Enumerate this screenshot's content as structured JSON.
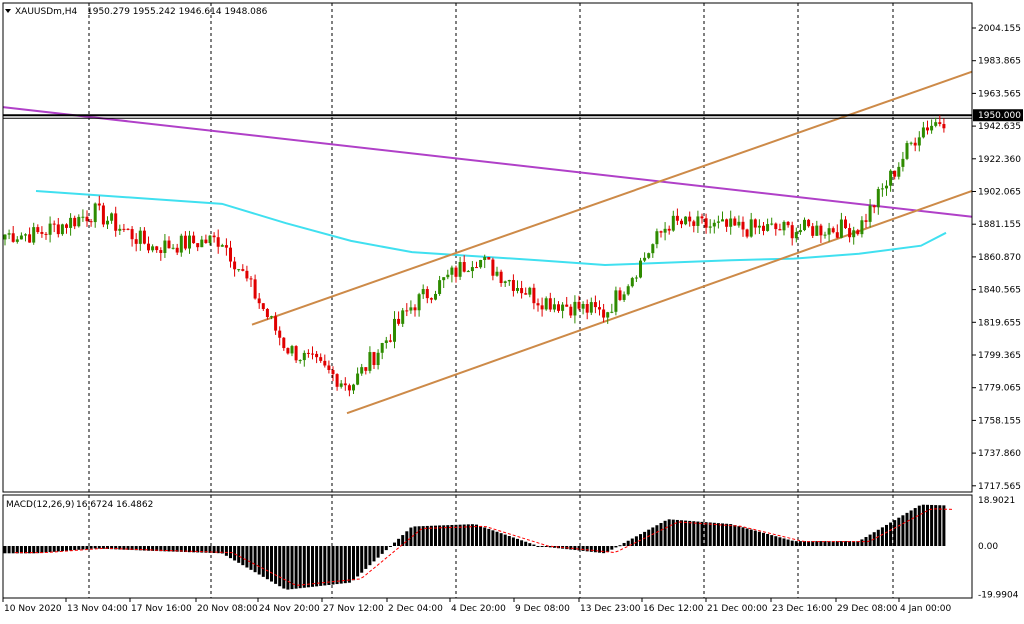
{
  "symbol_header": {
    "symbol": "XAUUSDm,H4",
    "ohlc": "1950.279 1955.242 1946.614 1948.086"
  },
  "macd_header": {
    "name": "MACD(12,26,9)",
    "values": "16.6724 16.4862"
  },
  "price_axis_labels": [
    "2004.155",
    "1983.865",
    "1963.565",
    "1942.635",
    "1922.360",
    "1902.065",
    "1881.155",
    "1860.870",
    "1840.565",
    "1819.655",
    "1799.365",
    "1779.065",
    "1758.155",
    "1737.860",
    "1717.565"
  ],
  "macd_axis_labels": [
    "18.9021",
    "0.00",
    "-19.9904"
  ],
  "hline_label": "1950.000",
  "time_labels": [
    "10 Nov 2020",
    "13 Nov 04:00",
    "17 Nov 16:00",
    "20 Nov 08:00",
    "24 Nov 20:00",
    "27 Nov 12:00",
    "2 Dec 04:00",
    "4 Dec 20:00",
    "9 Dec 08:00",
    "13 Dec 23:00",
    "16 Dec 12:00",
    "21 Dec 00:00",
    "23 Dec 16:00",
    "29 Dec 08:00",
    "4 Jan 00:00"
  ],
  "colors": {
    "bull": "#2e8b00",
    "bear": "#e00000",
    "ma": "#40e0f0",
    "channel": "#cd8a48",
    "trendline": "#b040c8",
    "hline": "#000000",
    "macd_hist": "#000000",
    "macd_signal": "#ff0000"
  },
  "chart_data": [
    {
      "type": "candlestick",
      "title": "XAUUSDm,H4",
      "ylim": [
        1717.565,
        2014
      ],
      "close_series_by_label": [
        {
          "x": "10 Nov 2020",
          "close": 1876
        },
        {
          "x": "13 Nov 04:00",
          "close": 1890
        },
        {
          "x": "17 Nov 16:00",
          "close": 1868
        },
        {
          "x": "20 Nov 08:00",
          "close": 1873
        },
        {
          "x": "24 Nov 20:00",
          "close": 1806
        },
        {
          "x": "27 Nov 12:00",
          "close": 1782
        },
        {
          "x": "2 Dec 04:00",
          "close": 1832
        },
        {
          "x": "4 Dec 20:00",
          "close": 1862
        },
        {
          "x": "9 Dec 08:00",
          "close": 1836
        },
        {
          "x": "13 Dec 23:00",
          "close": 1827
        },
        {
          "x": "16 Dec 12:00",
          "close": 1883
        },
        {
          "x": "21 Dec 00:00",
          "close": 1880
        },
        {
          "x": "23 Dec 16:00",
          "close": 1879
        },
        {
          "x": "29 Dec 08:00",
          "close": 1880
        },
        {
          "x": "4 Jan 00:00",
          "close": 1942
        },
        {
          "x": "last",
          "close": 1948.086
        }
      ],
      "moving_average": [
        {
          "x": "10 Nov 2020",
          "y": 1903
        },
        {
          "x": "17 Nov 16:00",
          "y": 1898
        },
        {
          "x": "20 Nov 08:00",
          "y": 1895
        },
        {
          "x": "24 Nov 20:00",
          "y": 1883
        },
        {
          "x": "27 Nov 12:00",
          "y": 1872
        },
        {
          "x": "2 Dec 04:00",
          "y": 1865
        },
        {
          "x": "9 Dec 08:00",
          "y": 1860
        },
        {
          "x": "13 Dec 23:00",
          "y": 1857
        },
        {
          "x": "21 Dec 00:00",
          "y": 1860
        },
        {
          "x": "23 Dec 16:00",
          "y": 1861
        },
        {
          "x": "29 Dec 08:00",
          "y": 1864
        },
        {
          "x": "4 Jan 00:00",
          "y": 1869
        },
        {
          "x": "last",
          "y": 1877
        }
      ],
      "horizontal_line": 1950.0,
      "trendline_descending": {
        "from": {
          "x": "10 Nov 2020",
          "y": 1955
        },
        "to": {
          "x": "right_edge",
          "y": 1887
        }
      },
      "channel_upper": {
        "from": {
          "x": "24 Nov 20:00",
          "y": 1820
        },
        "to": {
          "x": "right_edge",
          "y": 1977
        }
      },
      "channel_lower": {
        "from": {
          "x": "27 Nov 12:00",
          "y": 1765
        },
        "to": {
          "x": "right_edge",
          "y": 1903
        }
      }
    },
    {
      "type": "histogram",
      "title": "MACD(12,26,9)",
      "ylim": [
        -19.9904,
        18.9021
      ],
      "histogram_by_label": [
        {
          "x": "10 Nov 2020",
          "y": -3
        },
        {
          "x": "13 Nov 04:00",
          "y": -1
        },
        {
          "x": "17 Nov 16:00",
          "y": -2
        },
        {
          "x": "20 Nov 08:00",
          "y": -3
        },
        {
          "x": "24 Nov 20:00",
          "y": -18
        },
        {
          "x": "27 Nov 12:00",
          "y": -15
        },
        {
          "x": "2 Dec 04:00",
          "y": 8
        },
        {
          "x": "4 Dec 20:00",
          "y": 9
        },
        {
          "x": "9 Dec 08:00",
          "y": 0
        },
        {
          "x": "13 Dec 23:00",
          "y": -3
        },
        {
          "x": "16 Dec 12:00",
          "y": 11
        },
        {
          "x": "21 Dec 00:00",
          "y": 9
        },
        {
          "x": "23 Dec 16:00",
          "y": 2
        },
        {
          "x": "29 Dec 08:00",
          "y": 2
        },
        {
          "x": "4 Jan 00:00",
          "y": 17
        },
        {
          "x": "last",
          "y": 16.6724
        }
      ],
      "signal_last": 16.4862
    }
  ]
}
